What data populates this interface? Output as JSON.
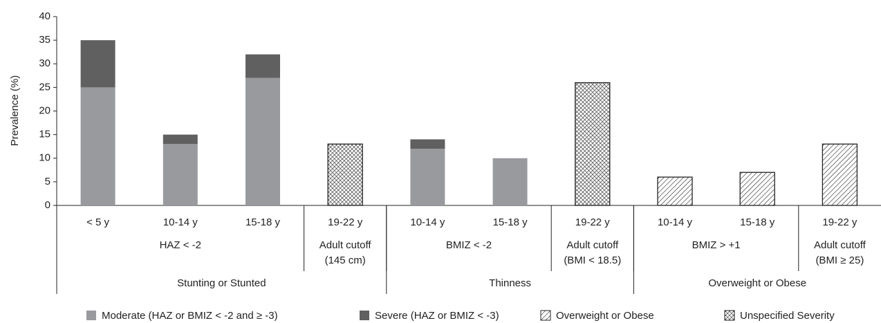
{
  "chart_data": {
    "type": "stacked_bar",
    "y_label": "Prevalence (%)",
    "categories": [
      "< 5 y",
      "10-14 y",
      "15-18 y",
      "19-22 y",
      "10-14 y",
      "15-18 y",
      "19-22 y",
      "10-14 y",
      "15-18 y",
      "19-22 y"
    ],
    "subgroups": [
      {
        "label": [
          "HAZ < -2"
        ],
        "span": [
          0,
          2
        ]
      },
      {
        "label": [
          "Adult cutoff",
          "(145 cm)"
        ],
        "span": [
          3,
          3
        ]
      },
      {
        "label": [
          "BMIZ < -2"
        ],
        "span": [
          4,
          5
        ]
      },
      {
        "label": [
          "Adult cutoff",
          "(BMI < 18.5)"
        ],
        "span": [
          6,
          6
        ]
      },
      {
        "label": [
          "BMIZ > +1"
        ],
        "span": [
          7,
          8
        ]
      },
      {
        "label": [
          "Adult cutoff",
          "(BMI ≥ 25)"
        ],
        "span": [
          9,
          9
        ]
      }
    ],
    "groups": [
      {
        "label": "Stunting or Stunted",
        "span": [
          0,
          3
        ]
      },
      {
        "label": "Thinness",
        "span": [
          4,
          6
        ]
      },
      {
        "label": "Overweight or Obese",
        "span": [
          7,
          9
        ]
      }
    ],
    "series": [
      {
        "name": "Moderate (HAZ or BMIZ < -2 and ≥ -3)",
        "color": "#999a9e",
        "pattern": "solid",
        "values": [
          25,
          13,
          27,
          null,
          12,
          10,
          null,
          null,
          null,
          null
        ]
      },
      {
        "name": "Severe (HAZ or BMIZ < -3)",
        "color": "#606060",
        "pattern": "solid",
        "values": [
          10,
          2,
          5,
          null,
          2,
          null,
          null,
          null,
          null,
          null
        ]
      },
      {
        "name": "Overweight or Obese",
        "color": "#333333",
        "pattern": "hatch",
        "values": [
          null,
          null,
          null,
          null,
          null,
          null,
          null,
          6,
          7,
          13
        ]
      },
      {
        "name": "Unspecified Severity",
        "color": "#333333",
        "pattern": "crosshatch",
        "values": [
          null,
          null,
          null,
          13,
          null,
          null,
          26,
          null,
          null,
          null
        ]
      }
    ],
    "ylim": [
      0,
      40
    ],
    "yticks": [
      0,
      5,
      10,
      15,
      20,
      25,
      30,
      35,
      40
    ]
  }
}
